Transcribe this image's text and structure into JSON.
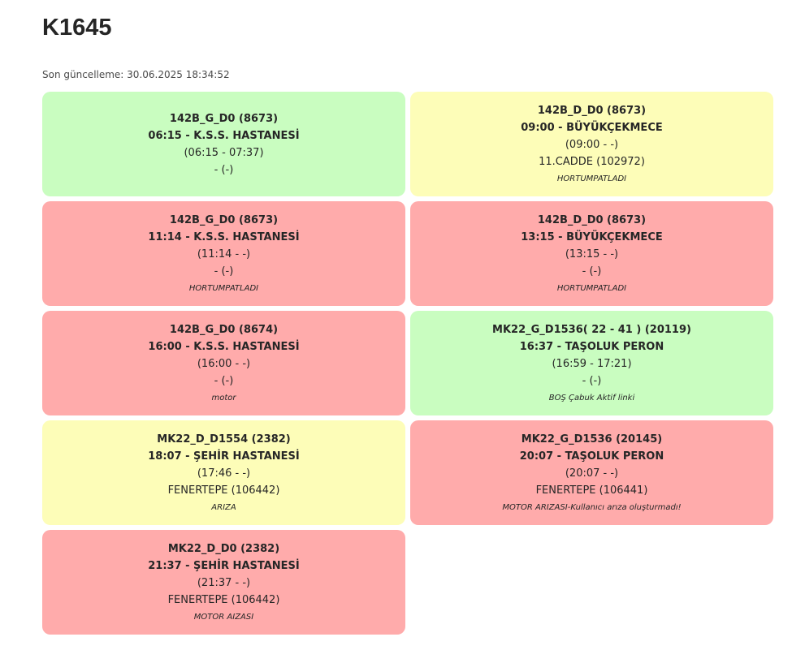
{
  "header": {
    "title": "K1645",
    "last_update": "Son güncelleme: 30.06.2025 18:34:52"
  },
  "colors": {
    "green": "#c9fdc0",
    "yellow": "#fdfdb8",
    "red": "#ffabab"
  },
  "cards": [
    {
      "status": "green",
      "route": "142B_G_D0 (8673)",
      "departure": "06:15 - K.S.S. HASTANESİ",
      "times": "(06:15 - 07:37)",
      "location": "- (-)",
      "note": ""
    },
    {
      "status": "yellow",
      "route": "142B_D_D0 (8673)",
      "departure": "09:00 - BÜYÜKÇEKMECE",
      "times": "(09:00 - -)",
      "location": "11.CADDE (102972)",
      "note": "HORTUMPATLADI"
    },
    {
      "status": "red",
      "route": "142B_G_D0 (8673)",
      "departure": "11:14 - K.S.S. HASTANESİ",
      "times": "(11:14 - -)",
      "location": "- (-)",
      "note": "HORTUMPATLADI"
    },
    {
      "status": "red",
      "route": "142B_D_D0 (8673)",
      "departure": "13:15 - BÜYÜKÇEKMECE",
      "times": "(13:15 - -)",
      "location": "- (-)",
      "note": "HORTUMPATLADI"
    },
    {
      "status": "red",
      "route": "142B_G_D0 (8674)",
      "departure": "16:00 - K.S.S. HASTANESİ",
      "times": "(16:00 - -)",
      "location": "- (-)",
      "note": "motor"
    },
    {
      "status": "green",
      "route": "MK22_G_D1536( 22 - 41 ) (20119)",
      "departure": "16:37 - TAŞOLUK PERON",
      "times": "(16:59 - 17:21)",
      "location": "- (-)",
      "note": "BOŞ Çabuk Aktif linki"
    },
    {
      "status": "yellow",
      "route": "MK22_D_D1554 (2382)",
      "departure": "18:07 - ŞEHİR HASTANESİ",
      "times": "(17:46 - -)",
      "location": "FENERTEPE (106442)",
      "note": "ARIZA"
    },
    {
      "status": "red",
      "route": "MK22_G_D1536 (20145)",
      "departure": "20:07 - TAŞOLUK PERON",
      "times": "(20:07 - -)",
      "location": "FENERTEPE (106441)",
      "note": "MOTOR ARIZASI-Kullanıcı arıza oluşturmadı!"
    },
    {
      "status": "red",
      "route": "MK22_D_D0 (2382)",
      "departure": "21:37 - ŞEHİR HASTANESİ",
      "times": "(21:37 - -)",
      "location": "FENERTEPE (106442)",
      "note": "MOTOR AIZASI"
    }
  ]
}
